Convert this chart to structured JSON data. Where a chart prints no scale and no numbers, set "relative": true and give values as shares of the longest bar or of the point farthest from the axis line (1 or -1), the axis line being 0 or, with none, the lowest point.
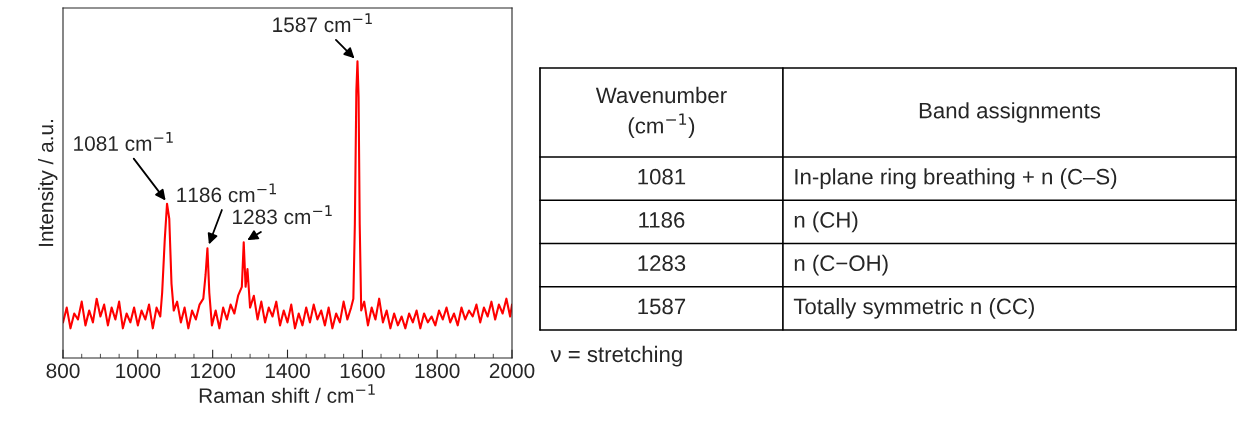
{
  "chart_data": [
    {
      "type": "line",
      "xlabel": "Raman shift / cm$^{−1}$",
      "ylabel": "Intensity / a.u.",
      "relative": true,
      "xlim": [
        800,
        2000
      ],
      "xticks": [
        800,
        1000,
        1200,
        1400,
        1600,
        1800,
        2000
      ],
      "grid": false,
      "legend": false,
      "marker": "none",
      "line_style": "solid",
      "series": [
        {
          "color": "#ff0000",
          "x": [
            800,
            810,
            820,
            830,
            840,
            850,
            860,
            870,
            880,
            890,
            900,
            910,
            920,
            930,
            940,
            950,
            960,
            970,
            980,
            990,
            1000,
            1010,
            1020,
            1030,
            1040,
            1050,
            1060,
            1065,
            1072,
            1078,
            1084,
            1090,
            1096,
            1105,
            1115,
            1125,
            1135,
            1145,
            1155,
            1165,
            1175,
            1181,
            1186,
            1191,
            1198,
            1208,
            1218,
            1228,
            1238,
            1248,
            1258,
            1268,
            1278,
            1283,
            1288,
            1293,
            1300,
            1310,
            1320,
            1330,
            1340,
            1350,
            1360,
            1370,
            1380,
            1390,
            1400,
            1410,
            1420,
            1430,
            1440,
            1450,
            1460,
            1470,
            1480,
            1490,
            1500,
            1510,
            1520,
            1530,
            1540,
            1550,
            1560,
            1570,
            1576,
            1580,
            1584,
            1587,
            1590,
            1593,
            1597,
            1605,
            1615,
            1625,
            1635,
            1645,
            1655,
            1665,
            1675,
            1685,
            1695,
            1705,
            1715,
            1725,
            1735,
            1745,
            1755,
            1765,
            1775,
            1785,
            1795,
            1805,
            1815,
            1825,
            1835,
            1845,
            1855,
            1865,
            1875,
            1885,
            1895,
            1905,
            1915,
            1925,
            1935,
            1945,
            1955,
            1965,
            1975,
            1985,
            1995,
            2000
          ],
          "values": [
            0.12,
            0.17,
            0.1,
            0.15,
            0.13,
            0.19,
            0.11,
            0.16,
            0.12,
            0.2,
            0.14,
            0.18,
            0.11,
            0.17,
            0.13,
            0.19,
            0.1,
            0.15,
            0.12,
            0.17,
            0.11,
            0.16,
            0.13,
            0.18,
            0.1,
            0.17,
            0.14,
            0.22,
            0.4,
            0.52,
            0.47,
            0.25,
            0.16,
            0.19,
            0.12,
            0.17,
            0.1,
            0.16,
            0.13,
            0.18,
            0.2,
            0.28,
            0.37,
            0.22,
            0.11,
            0.16,
            0.1,
            0.17,
            0.13,
            0.18,
            0.15,
            0.21,
            0.24,
            0.39,
            0.24,
            0.3,
            0.17,
            0.21,
            0.13,
            0.19,
            0.12,
            0.17,
            0.14,
            0.19,
            0.11,
            0.16,
            0.12,
            0.18,
            0.1,
            0.15,
            0.11,
            0.17,
            0.12,
            0.18,
            0.13,
            0.16,
            0.11,
            0.17,
            0.1,
            0.15,
            0.12,
            0.19,
            0.13,
            0.17,
            0.2,
            0.45,
            0.9,
            1.0,
            0.88,
            0.45,
            0.16,
            0.19,
            0.11,
            0.17,
            0.13,
            0.2,
            0.12,
            0.16,
            0.1,
            0.15,
            0.11,
            0.14,
            0.1,
            0.15,
            0.12,
            0.16,
            0.1,
            0.15,
            0.12,
            0.14,
            0.11,
            0.16,
            0.13,
            0.17,
            0.12,
            0.15,
            0.11,
            0.17,
            0.13,
            0.16,
            0.14,
            0.18,
            0.12,
            0.17,
            0.14,
            0.19,
            0.13,
            0.18,
            0.15,
            0.2,
            0.14,
            0.18
          ]
        }
      ],
      "annotations": [
        {
          "text": "1081 cm$^{−1}$",
          "x": 1081,
          "y": 0.52
        },
        {
          "text": "1186 cm$^{−1}$",
          "x": 1186,
          "y": 0.37
        },
        {
          "text": "1283 cm$^{−1}$",
          "x": 1283,
          "y": 0.39
        },
        {
          "text": "1587 cm$^{−1}$",
          "x": 1587,
          "y": 1.0
        }
      ]
    },
    {
      "type": "other",
      "annotations": [
        "Wavenumber\n(cm$^{−1}$)",
        "Band assignments",
        "1081",
        "In-plane ring breathing + n (C–S)",
        "1186",
        "n (CH)",
        "1283",
        "n (C−OH)",
        "1587",
        "Totally symmetric n (CC)",
        "ν = stretching"
      ]
    }
  ]
}
